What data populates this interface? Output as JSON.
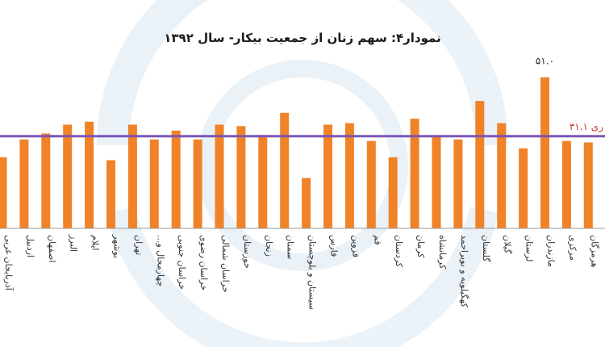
{
  "chart_data": {
    "type": "bar",
    "title": "نمودار۴: سهم زنان از جمعیت بیکار- سال ۱۳۹۲",
    "categories": [
      "آذربایجان غربی",
      "اردبیل",
      "اصفهان",
      "البرز",
      "ایلام",
      "بوشهر",
      "تهران",
      "چهارمحال و...",
      "خراسان جنوبی",
      "خراسان رضوی",
      "خراسان شمالی",
      "خوزستان",
      "زنجان",
      "سمنان",
      "سیستان و بلوچستان",
      "فارس",
      "قزوین",
      "قم",
      "کردستان",
      "کرمان",
      "کرمانشاه",
      "کهگیلویه و بویراحمد",
      "گلستان",
      "گیلان",
      "لرستان",
      "مازندران",
      "مرکزی",
      "هرمزگان"
    ],
    "values": [
      24,
      30,
      32,
      35,
      36,
      23,
      35,
      30,
      33,
      30,
      35,
      34.5,
      31.5,
      39,
      17,
      35,
      35.5,
      29.5,
      24,
      37,
      31,
      30,
      43,
      35.5,
      27,
      51,
      29.5,
      29
    ],
    "bar_color": "#f08228",
    "labeled_point": {
      "category": "مازندران",
      "label": "۵۱.۰"
    },
    "reference_line": {
      "value": 31.1,
      "label": "ری ۳۱.۱",
      "color": "#7b56b8",
      "label_color": "#c0392b"
    },
    "ylim": [
      0,
      58
    ],
    "grid": false
  }
}
